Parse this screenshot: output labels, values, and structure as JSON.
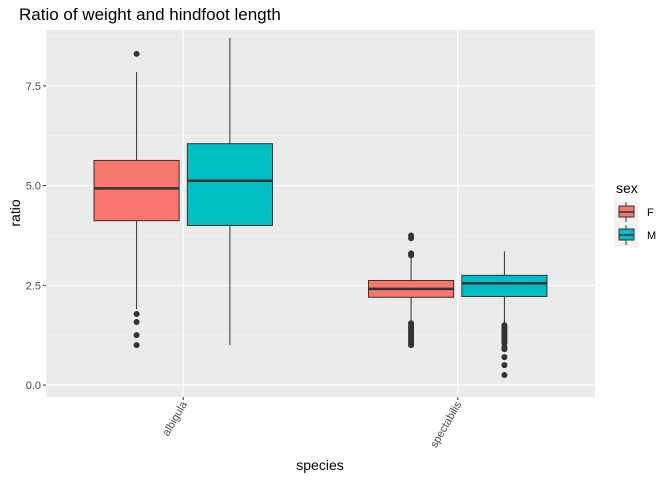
{
  "chart_data": {
    "type": "boxplot",
    "title": "Ratio of weight and hindfoot length",
    "xlabel": "species",
    "ylabel": "ratio",
    "categories": [
      "albigula",
      "spectabilis"
    ],
    "yticks": [
      0.0,
      2.5,
      5.0,
      7.5
    ],
    "ytick_labels": [
      "0.0",
      "2.5",
      "5.0",
      "7.5"
    ],
    "ylim": [
      -0.3,
      8.9
    ],
    "grid": true,
    "legend": {
      "title": "sex",
      "position": "right",
      "entries": [
        {
          "label": "F",
          "color": "#F8766D"
        },
        {
          "label": "M",
          "color": "#00BFC4"
        }
      ]
    },
    "series": [
      {
        "name": "F",
        "color": "#F8766D",
        "boxes": [
          {
            "category": "albigula",
            "q1": 4.12,
            "median": 4.93,
            "q3": 5.63,
            "whisker_low": 1.9,
            "whisker_high": 7.85,
            "outliers": [
              8.3,
              1.78,
              1.58,
              1.25,
              1.0
            ]
          },
          {
            "category": "spectabilis",
            "q1": 2.2,
            "median": 2.41,
            "q3": 2.62,
            "whisker_low": 1.6,
            "whisker_high": 3.2,
            "outliers": [
              3.75,
              3.68,
              3.3,
              3.25,
              1.55,
              1.5,
              1.45,
              1.4,
              1.35,
              1.3,
              1.25,
              1.2,
              1.15,
              1.1,
              1.05,
              1.0
            ]
          }
        ]
      },
      {
        "name": "M",
        "color": "#00BFC4",
        "boxes": [
          {
            "category": "albigula",
            "q1": 4.0,
            "median": 5.12,
            "q3": 6.05,
            "whisker_low": 1.0,
            "whisker_high": 8.7,
            "outliers": []
          },
          {
            "category": "spectabilis",
            "q1": 2.22,
            "median": 2.55,
            "q3": 2.75,
            "whisker_low": 1.55,
            "whisker_high": 3.35,
            "outliers": [
              1.5,
              1.45,
              1.4,
              1.35,
              1.3,
              1.25,
              1.2,
              1.15,
              1.1,
              1.05,
              0.95,
              0.9,
              0.7,
              0.5,
              0.25
            ]
          }
        ]
      }
    ]
  }
}
